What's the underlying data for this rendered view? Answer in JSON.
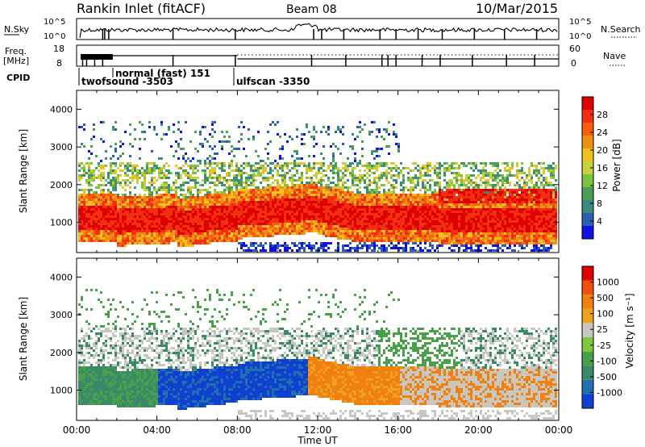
{
  "header": {
    "station": "Rankin Inlet (fitACF)",
    "beam": "Beam 08",
    "date": "10/Mar/2015"
  },
  "strip_labels": {
    "nsky": "N.Sky",
    "nsky_ticks": [
      "10^5",
      "10^0"
    ],
    "nsearch": "N.Search",
    "nsearch_ticks": [
      "10^5",
      "10^0"
    ],
    "freq_line1": "Freq.",
    "freq_line2": "[MHz]",
    "freq_ticks": [
      "18",
      "8"
    ],
    "nave": "Nave",
    "nave_ticks": [
      "60",
      "0"
    ],
    "cpid": "CPID"
  },
  "cpid_segments": [
    {
      "label": "twofsound -3503"
    },
    {
      "label": "normal (fast) 151"
    },
    {
      "label": "ulfscan -3350"
    }
  ],
  "colorbars": {
    "power": {
      "label": "Power [dB]",
      "ticks": [
        "28",
        "24",
        "20",
        "16",
        "12",
        "8",
        "4"
      ],
      "colors": [
        "#1010e0",
        "#2a5fb0",
        "#3a8a80",
        "#4a9e58",
        "#7cc440",
        "#c8d040",
        "#f0c020",
        "#f09010",
        "#f86010",
        "#f03010",
        "#e00000"
      ]
    },
    "velocity": {
      "label": "Velocity [m s⁻¹]",
      "ticks": [
        "1000",
        "500",
        "100",
        "25",
        "-25",
        "-100",
        "-500",
        "-1000"
      ],
      "colors": [
        "#1040d0",
        "#2070b0",
        "#3a8a6a",
        "#4aa04a",
        "#80c840",
        "#c8c8c0",
        "#f0a020",
        "#f08010",
        "#f05010",
        "#e00000"
      ]
    }
  },
  "axes": {
    "ylabel": "Slant Range [km]",
    "xlabel": "Time UT"
  },
  "chart_data": [
    {
      "type": "heatmap",
      "name": "power",
      "x": [
        "00:00",
        "04:00",
        "08:00",
        "12:00",
        "16:00",
        "20:00",
        "00:00"
      ],
      "y_ticks": [
        1000,
        2000,
        3000,
        4000
      ],
      "ylim": [
        200,
        4500
      ],
      "xlim_hours": [
        0,
        24
      ],
      "cbar_range_db": [
        0,
        30
      ]
    },
    {
      "type": "heatmap",
      "name": "velocity",
      "x": [
        "00:00",
        "04:00",
        "08:00",
        "12:00",
        "16:00",
        "20:00",
        "00:00"
      ],
      "y_ticks": [
        1000,
        2000,
        3000,
        4000
      ],
      "ylim": [
        200,
        4500
      ],
      "xlim_hours": [
        0,
        24
      ],
      "cbar_range_ms": [
        -1000,
        1000
      ]
    }
  ]
}
